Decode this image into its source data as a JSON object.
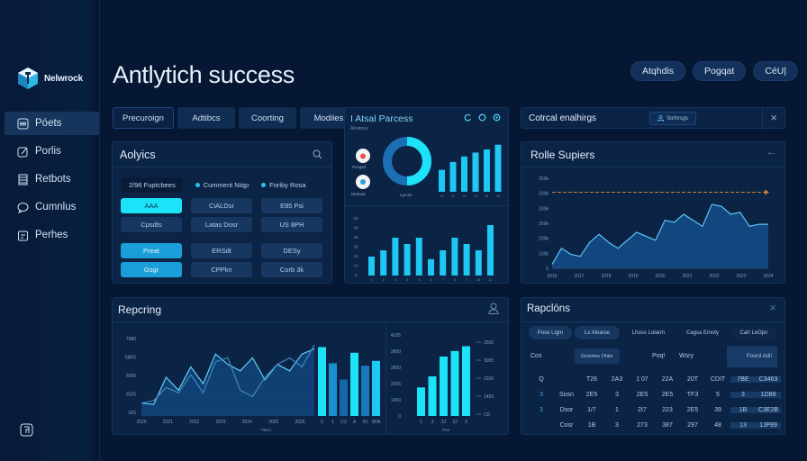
{
  "sidebar": {
    "brand": "Nelwrock",
    "items": [
      {
        "label": "Póets",
        "icon": "grid-icon",
        "active": true
      },
      {
        "label": "Porlis",
        "icon": "edit-icon",
        "active": false
      },
      {
        "label": "Retbots",
        "icon": "list-icon",
        "active": false
      },
      {
        "label": "Cumnlus",
        "icon": "chat-icon",
        "active": false
      },
      {
        "label": "Perhes",
        "icon": "clipboard-icon",
        "active": false
      }
    ],
    "footer_icon": "settings-icon"
  },
  "header": {
    "title": "Antlytich success",
    "actions": [
      "Atqhdis",
      "Pogqat",
      "CéU|"
    ]
  },
  "tabs": [
    "Precuroign",
    "Adtibcs",
    "Coorting",
    "Modiles"
  ],
  "analytics_panel": {
    "title": "Aolyics",
    "legend": [
      {
        "label": "2/96 Fuptcbees",
        "dot": false
      },
      {
        "label": "Cumment Ntqp",
        "dot": true
      },
      {
        "label": "Foriby Rosa",
        "dot": true
      }
    ],
    "buttons": [
      [
        "AAA",
        "CiALDsr",
        "E85 Psi"
      ],
      [
        "Cpsdts",
        "Latas Dosr",
        "US 8PH"
      ],
      [
        "Preat",
        "ERSdt",
        "DESy"
      ],
      [
        "Gsgr",
        "CPPkn",
        "Corb 3k"
      ]
    ]
  },
  "total_process_panel": {
    "title": "I Atsal Parcess",
    "subtitle": "Alnatooo",
    "icons": [
      "refresh-icon",
      "target-icon",
      "gear-icon"
    ],
    "badges": [
      {
        "label": "Pusgsd",
        "color": "#e0544e"
      },
      {
        "label": "Nedsed",
        "color": "#2b9de0"
      }
    ],
    "donut_label": "Lprcss",
    "donut_percent": 50
  },
  "control_panel": {
    "title": "Cotrcal enalhirgs",
    "badge": "Sorhrsgs",
    "close": "×"
  },
  "role_panel": {
    "title": "Rolle Supiers",
    "back_icon": "←"
  },
  "reporting_panel": {
    "title": "Repcring",
    "x_caption": "Tlasm",
    "right_x_caption": "Ylarr"
  },
  "regions_panel": {
    "title": "Rapclöns",
    "close": "×",
    "filters": [
      "Pose Ligm",
      "Ls Aloarse",
      "Lhoss Lotarm",
      "Cagsa Emoty",
      "Cart LeOpn"
    ],
    "row0": [
      "Cos",
      "Gmsrtoo Ohler",
      "",
      "Poq!",
      "Wsry",
      "",
      "Fosrsl Adi!"
    ],
    "header": [
      "Q",
      "",
      "T26",
      "2A3",
      "1 07",
      "22A",
      "20T",
      "CDIT",
      "7BE",
      "C3463"
    ],
    "rows": [
      [
        "3",
        "Sosn",
        "2E5",
        "3",
        "2E5",
        "2E5",
        "TF3",
        "5",
        "3",
        "1D89"
      ],
      [
        "3",
        "Dsor",
        "1/7",
        "1",
        "2I7",
        "223",
        "2E5",
        "39",
        "1B",
        "C3E2B"
      ],
      [
        "",
        "Cosr",
        "1B",
        "3",
        "273",
        "387",
        "297",
        "48",
        "13",
        "1JP89"
      ]
    ]
  },
  "chart_data": [
    {
      "type": "bar",
      "title": "I Atsal Parcess (top)",
      "categories": [
        "c1",
        "c2",
        "c3",
        "c4",
        "c5",
        "c6"
      ],
      "values": [
        28,
        38,
        45,
        50,
        54,
        60
      ]
    },
    {
      "type": "bar",
      "title": "I Atsal Parcess (bottom)",
      "categories": [
        "1",
        "2",
        "3",
        "4",
        "5",
        "6",
        "7",
        "8",
        "9",
        "10",
        "11"
      ],
      "values": [
        15,
        20,
        30,
        25,
        30,
        13,
        20,
        30,
        25,
        20,
        40
      ],
      "yticks": [
        "5",
        "10",
        "15",
        "30",
        "35",
        "40",
        "50"
      ],
      "ylim": [
        0,
        50
      ]
    },
    {
      "type": "area",
      "title": "Rolle Supiers",
      "x": [
        0,
        1,
        2,
        3,
        4,
        5,
        6,
        7,
        8,
        9,
        10,
        11,
        12,
        13,
        14,
        15,
        16,
        17,
        18,
        19,
        20,
        21,
        22,
        23
      ],
      "values": [
        2,
        10,
        7,
        6,
        13,
        17,
        13,
        10,
        14,
        18,
        16,
        14,
        24,
        23,
        27,
        24,
        21,
        32,
        31,
        27,
        28,
        21,
        22,
        22
      ],
      "threshold": 38,
      "yticks": [
        "0",
        "100k",
        "200k",
        "250k",
        "300k",
        "330k",
        "350k"
      ],
      "xticks": [
        "2016",
        "2017",
        "2018",
        "2019",
        "2020",
        "2021",
        "2022",
        "2023",
        "2024"
      ]
    },
    {
      "type": "line",
      "title": "Repcring",
      "series": [
        {
          "name": "primary",
          "values": [
            10,
            9,
            30,
            20,
            38,
            25,
            48,
            40,
            35,
            45,
            28,
            40,
            35,
            48,
            52
          ]
        },
        {
          "name": "secondary",
          "values": [
            10,
            12,
            22,
            18,
            32,
            18,
            42,
            45,
            20,
            15,
            30,
            40,
            45,
            38,
            55
          ]
        }
      ],
      "yticks": [
        "1K5",
        "2025",
        "5090",
        "5BK5",
        "7080"
      ],
      "xticks": [
        "2020",
        "2021",
        "2022",
        "2023",
        "2024",
        "2025",
        "2026"
      ]
    },
    {
      "type": "bar",
      "title": "Repcring bars",
      "categories": [
        "5",
        "1",
        "C3",
        "A",
        "3V",
        "2KN"
      ],
      "values": [
        85,
        65,
        45,
        78,
        62,
        68
      ]
    },
    {
      "type": "bar",
      "title": "Repcring right",
      "categories": [
        "1",
        "3",
        "3J",
        "3J",
        "3"
      ],
      "values": [
        36,
        50,
        75,
        82,
        88
      ],
      "yticks_left": [
        "0",
        "1400",
        "2005",
        "2600",
        "3600",
        "4105"
      ],
      "yticks_right": [
        "CD",
        "1450",
        "2030",
        "3005",
        "3500"
      ]
    }
  ],
  "colors": {
    "bg": "#061733",
    "panel": "#0b2345",
    "accent_cyan": "#1de3f9",
    "accent_blue": "#1a9fd8",
    "threshold": "#c8843a"
  }
}
